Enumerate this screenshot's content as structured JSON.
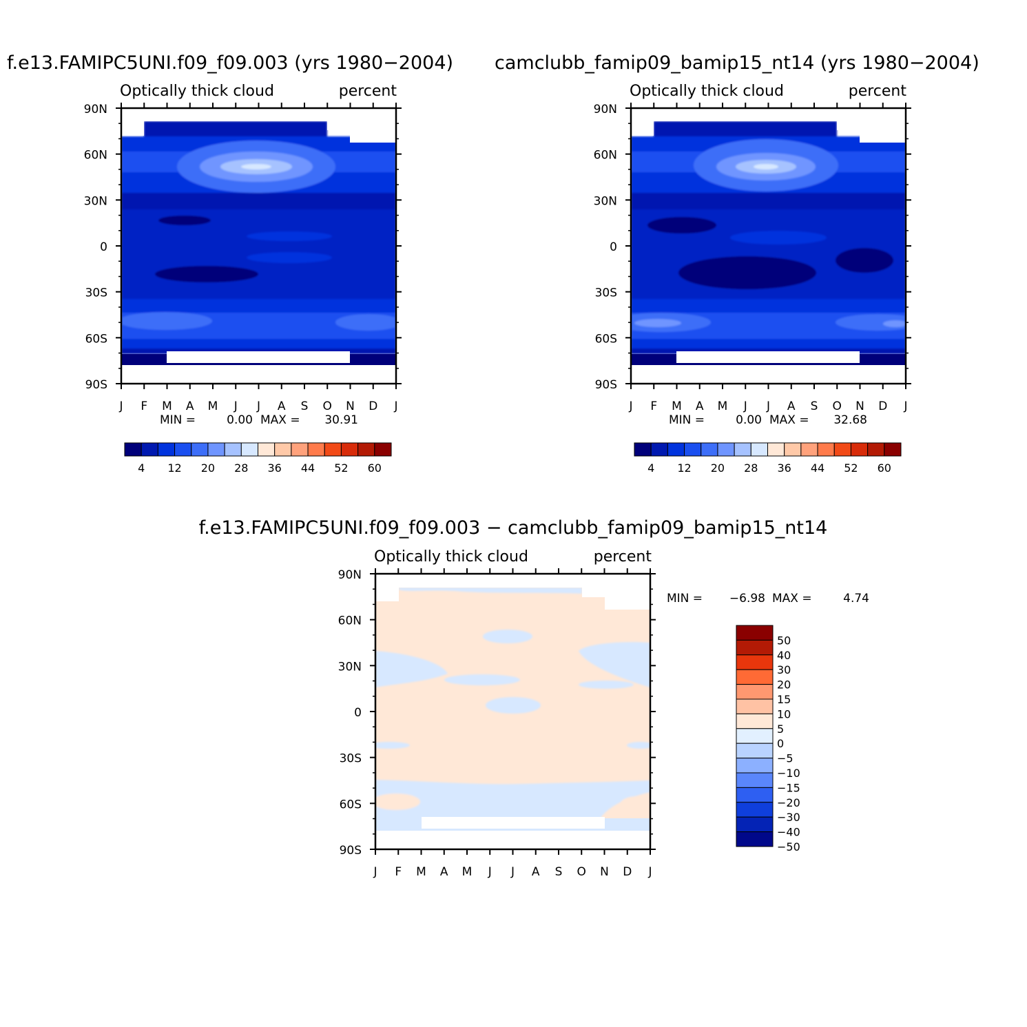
{
  "chart_data": [
    {
      "type": "heatmap",
      "title": "f.e13.FAMIPC5UNI.f09_f09.003 (yrs 1980−2004)",
      "subtitle_left": "Optically thick cloud",
      "subtitle_right": "percent",
      "x_ticks": [
        "J",
        "F",
        "M",
        "A",
        "M",
        "J",
        "J",
        "A",
        "S",
        "O",
        "N",
        "D",
        "J"
      ],
      "y_ticks": [
        "90N",
        "60N",
        "30N",
        "0",
        "30S",
        "60S",
        "90S"
      ],
      "ylim": [
        -90,
        90
      ],
      "min_label": "MIN =",
      "min_value": "0.00",
      "max_label": "MAX =",
      "max_value": "30.91",
      "colorbar_labels": [
        "4",
        "12",
        "20",
        "28",
        "36",
        "44",
        "52",
        "60"
      ],
      "colorbar_colors": [
        "#00007a",
        "#0019b0",
        "#0033dd",
        "#1a4ff0",
        "#3d6ef8",
        "#6f95ff",
        "#a6c2ff",
        "#d7e8ff",
        "#ffe8d7",
        "#ffc9a8",
        "#ffa27c",
        "#ff7b4b",
        "#f24a17",
        "#d82c0a",
        "#b31a05",
        "#8a0000"
      ]
    },
    {
      "type": "heatmap",
      "title": "camclubb_famip09_bamip15_nt14 (yrs 1980−2004)",
      "subtitle_left": "Optically thick cloud",
      "subtitle_right": "percent",
      "x_ticks": [
        "J",
        "F",
        "M",
        "A",
        "M",
        "J",
        "J",
        "A",
        "S",
        "O",
        "N",
        "D",
        "J"
      ],
      "y_ticks": [
        "90N",
        "60N",
        "30N",
        "0",
        "30S",
        "60S",
        "90S"
      ],
      "ylim": [
        -90,
        90
      ],
      "min_label": "MIN =",
      "min_value": "0.00",
      "max_label": "MAX =",
      "max_value": "32.68",
      "colorbar_labels": [
        "4",
        "12",
        "20",
        "28",
        "36",
        "44",
        "52",
        "60"
      ],
      "colorbar_colors": [
        "#00007a",
        "#0019b0",
        "#0033dd",
        "#1a4ff0",
        "#3d6ef8",
        "#6f95ff",
        "#a6c2ff",
        "#d7e8ff",
        "#ffe8d7",
        "#ffc9a8",
        "#ffa27c",
        "#ff7b4b",
        "#f24a17",
        "#d82c0a",
        "#b31a05",
        "#8a0000"
      ]
    },
    {
      "type": "heatmap",
      "title": "f.e13.FAMIPC5UNI.f09_f09.003 − camclubb_famip09_bamip15_nt14",
      "subtitle_left": "Optically thick cloud",
      "subtitle_right": "percent",
      "x_ticks": [
        "J",
        "F",
        "M",
        "A",
        "M",
        "J",
        "J",
        "A",
        "S",
        "O",
        "N",
        "D",
        "J"
      ],
      "y_ticks": [
        "90N",
        "60N",
        "30N",
        "0",
        "30S",
        "60S",
        "90S"
      ],
      "ylim": [
        -90,
        90
      ],
      "min_label": "MIN =",
      "min_value": "−6.98",
      "max_label": "MAX =",
      "max_value": "4.74",
      "colorbar_labels": [
        "50",
        "40",
        "30",
        "20",
        "15",
        "10",
        "5",
        "0",
        "−5",
        "−10",
        "−15",
        "−20",
        "−30",
        "−40",
        "−50"
      ],
      "colorbar_colors": [
        "#8a0000",
        "#b31a05",
        "#e8360c",
        "#ff6a35",
        "#ff9870",
        "#ffc2a4",
        "#ffe8d7",
        "#e2f0ff",
        "#b9d3ff",
        "#8cb0ff",
        "#5a86fb",
        "#2e5ff2",
        "#0f3fdc",
        "#0423b5",
        "#00088a"
      ]
    }
  ]
}
